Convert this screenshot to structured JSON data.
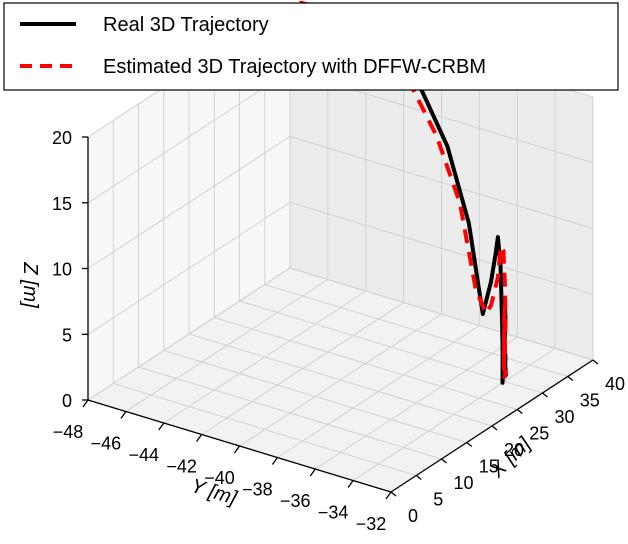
{
  "chart_data": {
    "type": "line3d",
    "title": "",
    "xlabel": "X [m]",
    "ylabel": "Y [m]",
    "zlabel": "Z [m]",
    "xlim": [
      0,
      40
    ],
    "ylim": [
      -48,
      -32
    ],
    "zlim": [
      0,
      20
    ],
    "xticks": [
      "0",
      "5",
      "10",
      "15",
      "20",
      "25",
      "30",
      "35",
      "40"
    ],
    "yticks": [
      "−48",
      "−46",
      "−44",
      "−42",
      "−40",
      "−38",
      "−36",
      "−34",
      "−32"
    ],
    "zticks": [
      "0",
      "5",
      "10",
      "15",
      "20"
    ],
    "grid": true,
    "legend_position": "top",
    "series": [
      {
        "name": "Real 3D Trajectory",
        "color": "#000000",
        "style": "solid",
        "x": [
          37.3,
          37.5,
          37.1,
          36.5,
          35.7,
          34.8,
          33.8,
          32.8,
          31.8,
          30.8,
          29.8,
          28.8,
          28.0,
          27.8,
          27.8,
          27.3,
          26.8,
          26.2,
          25.5,
          25.1,
          24.7,
          24.5,
          24.3,
          24.1,
          24.0,
          23.8,
          23.6,
          23.5,
          23.4,
          23.3
        ],
        "y": [
          -48.0,
          -45.8,
          -43.9,
          -41.9,
          -40.0,
          -38.3,
          -36.9,
          -35.9,
          -35.2,
          -34.7,
          -34.3,
          -33.9,
          -33.6,
          -33.5,
          -33.4,
          -33.3,
          -33.1,
          -33.0,
          -32.9,
          -32.8,
          -32.7,
          -32.6,
          -32.5,
          -32.4,
          -32.4,
          -32.3,
          -32.3,
          -32.2,
          -32.2,
          -32.2
        ],
        "z": [
          19.0,
          20.6,
          21.3,
          20.6,
          18.4,
          14.8,
          9.8,
          3.6,
          6.6,
          9.1,
          10.9,
          9.2,
          5.2,
          1.2,
          1.2,
          3.6,
          6.0,
          7.6,
          6.4,
          3.5,
          1.8,
          2.8,
          4.9,
          6.1,
          5.2,
          4.0,
          3.2,
          2.9,
          3.5,
          4.4
        ]
      },
      {
        "name": "Estimated 3D Trajectory with DFFW-CRBM",
        "color": "#ff0000",
        "style": "dashed",
        "x": [
          37.7,
          37.6,
          37.3,
          36.6,
          35.8,
          34.9,
          33.9,
          32.9,
          32.3,
          31.8,
          30.9,
          30.0,
          29.0,
          28.6,
          28.3,
          27.8,
          27.3,
          26.9,
          26.3,
          25.8,
          25.4,
          25.0,
          24.6,
          24.4,
          24.2,
          24.0,
          23.8,
          23.6,
          23.5,
          23.4
        ],
        "y": [
          -48.0,
          -46.8,
          -44.5,
          -42.5,
          -40.6,
          -38.9,
          -37.4,
          -36.3,
          -35.6,
          -35.2,
          -34.6,
          -34.2,
          -33.8,
          -33.6,
          -33.5,
          -33.4,
          -33.3,
          -33.2,
          -33.0,
          -32.9,
          -32.8,
          -32.7,
          -32.6,
          -32.5,
          -32.5,
          -32.4,
          -32.3,
          -32.3,
          -32.2,
          -32.2
        ],
        "z": [
          20.1,
          21.3,
          21.6,
          20.6,
          18.5,
          15.3,
          11.1,
          5.3,
          3.9,
          4.8,
          7.4,
          10.2,
          10.3,
          7.6,
          5.0,
          3.0,
          3.3,
          5.7,
          7.3,
          6.3,
          3.8,
          2.8,
          3.5,
          5.2,
          4.3,
          3.2,
          2.8,
          2.7,
          3.1,
          3.5
        ]
      }
    ]
  }
}
